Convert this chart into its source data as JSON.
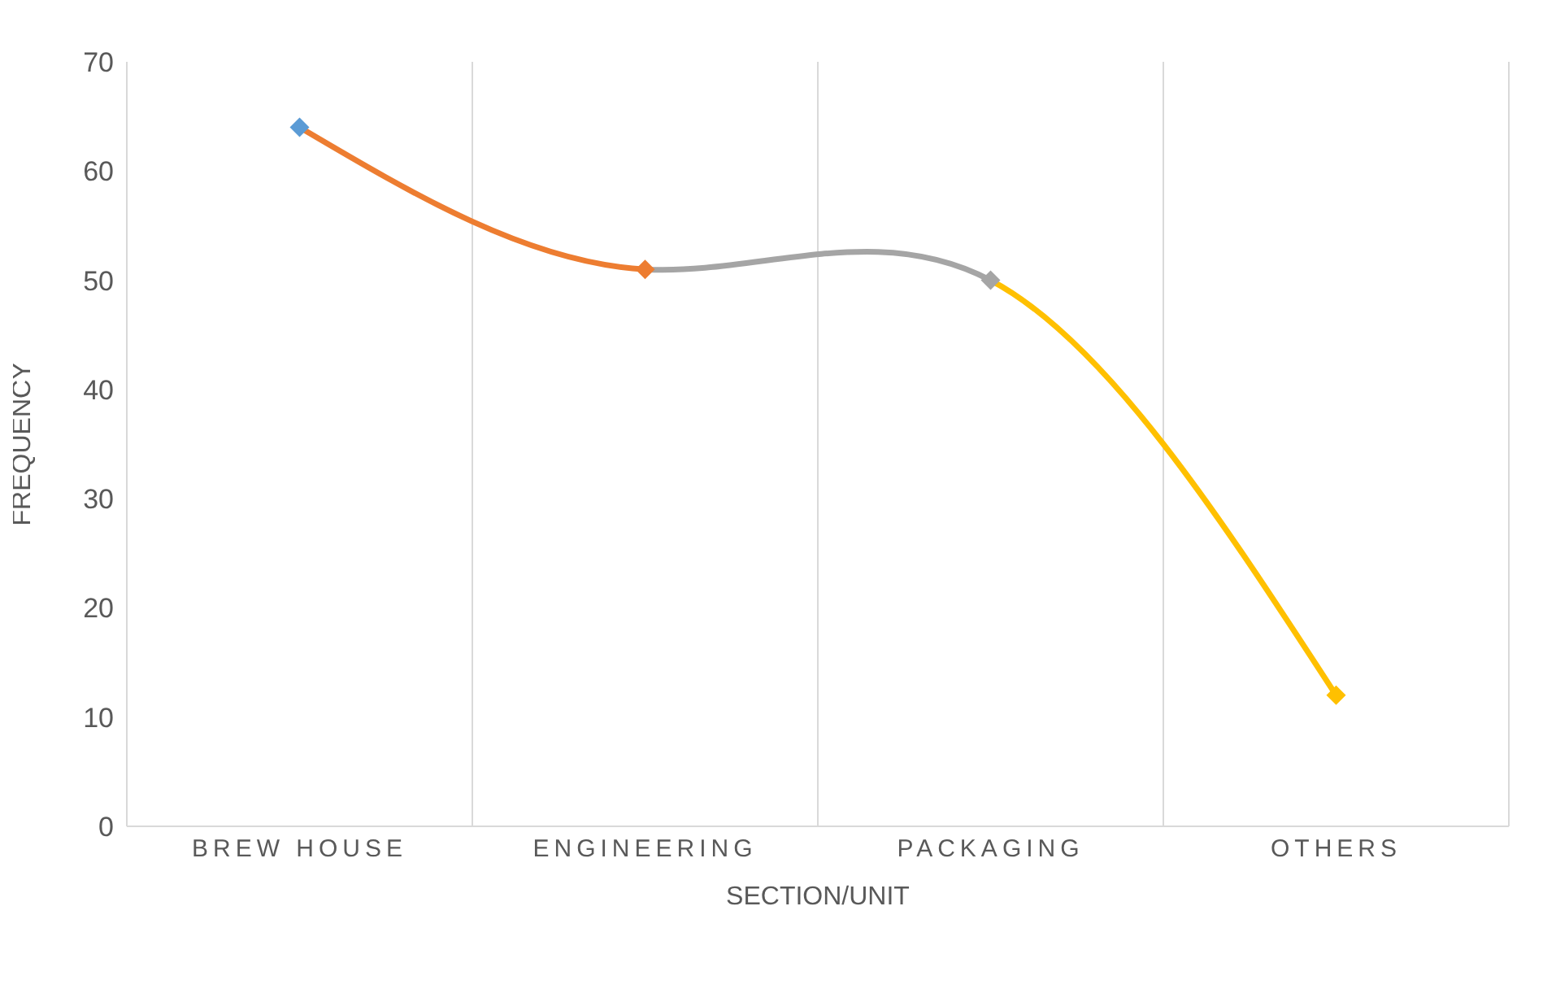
{
  "chart_data": {
    "type": "line",
    "xlabel": "SECTION/UNIT",
    "ylabel": "FREQUENCY",
    "categories": [
      "BREW HOUSE",
      "ENGINEERING",
      "PACKAGING",
      "OTHERS"
    ],
    "values": [
      64,
      51,
      50,
      12
    ],
    "colors": [
      "#5b9bd5",
      "#ed7d31",
      "#a5a5a5",
      "#ffc000"
    ],
    "ylim": [
      0,
      70
    ],
    "yticks": [
      0,
      10,
      20,
      30,
      40,
      50,
      60,
      70
    ],
    "grid": "x",
    "marker": "diamond"
  }
}
